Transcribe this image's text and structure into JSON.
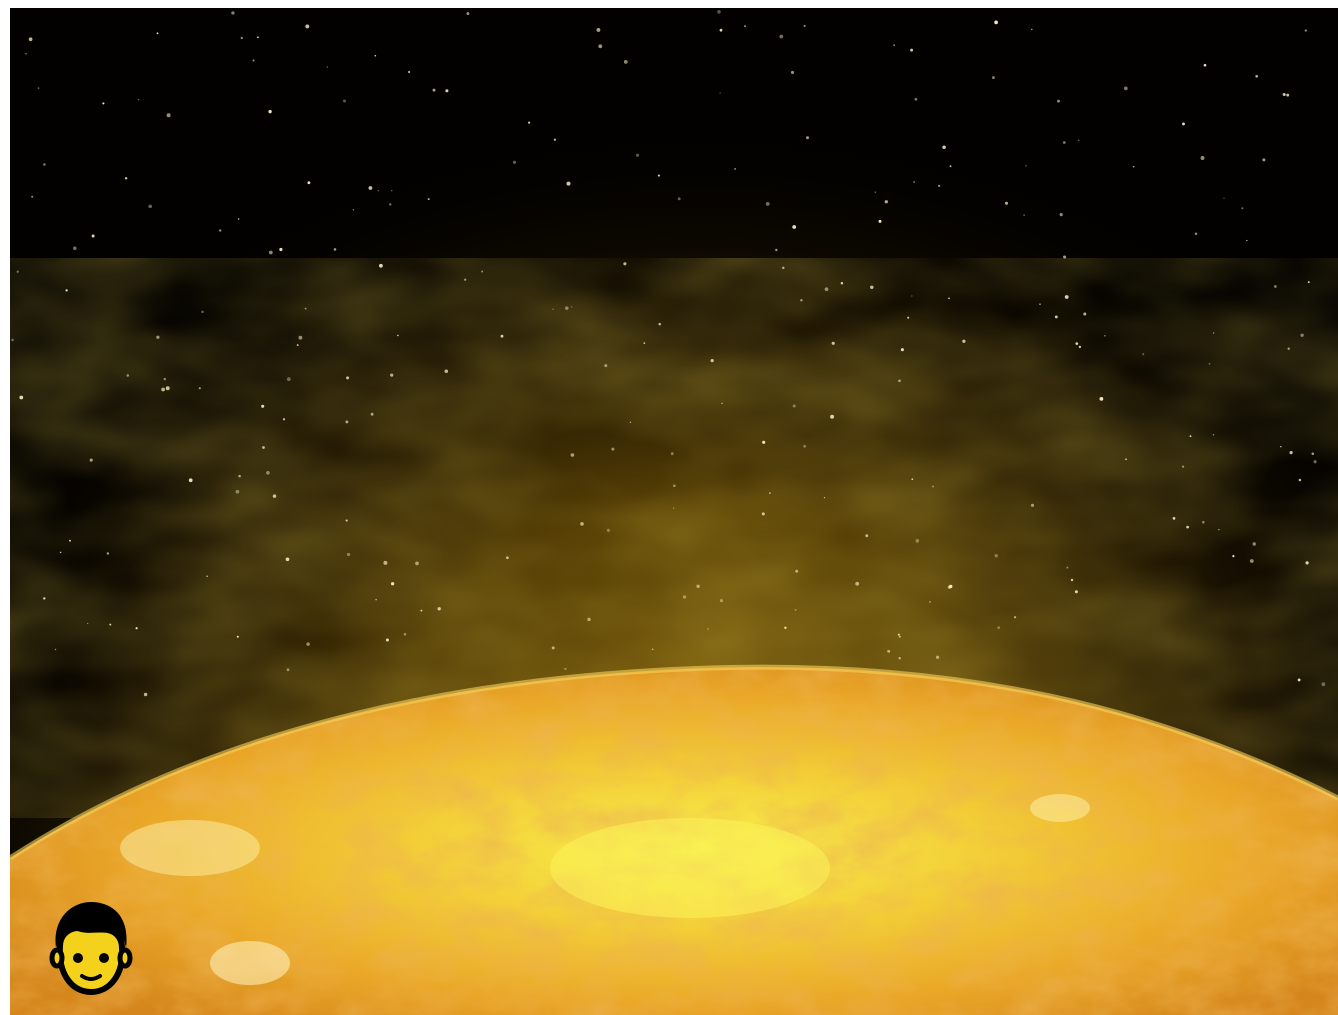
{
  "scene": {
    "subject": "sun-surface",
    "colors": {
      "space": "#020100",
      "corona": "#8a6a08",
      "surface_core": "#f6f04a",
      "surface_mid": "#efb427",
      "surface_edge": "#d98a1c",
      "star": "#fff3c8"
    }
  },
  "controls": {
    "avatar": {
      "icon": "person-face-icon",
      "colors": {
        "face": "#f4d21c",
        "outline": "#000000"
      }
    }
  }
}
